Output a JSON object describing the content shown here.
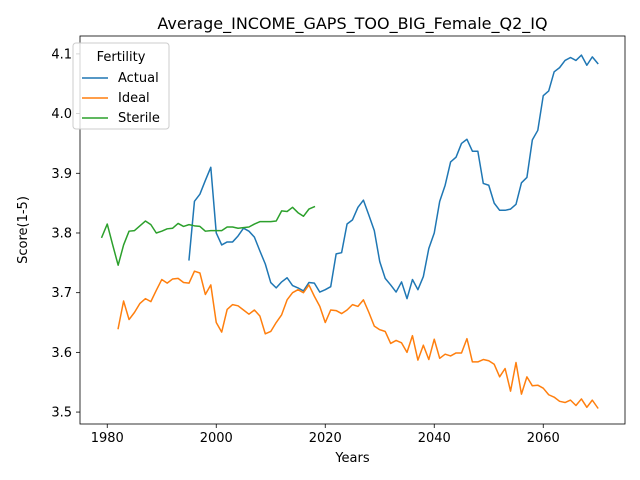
{
  "chart_data": {
    "type": "line",
    "title": "Average_INCOME_GAPS_TOO_BIG_Female_Q2_IQ",
    "xlabel": "Years",
    "ylabel": "Score(1-5)",
    "xlim": [
      1975,
      2075
    ],
    "ylim": [
      3.48,
      4.13
    ],
    "xticks": [
      1980,
      2000,
      2020,
      2040,
      2060
    ],
    "yticks": [
      3.5,
      3.6,
      3.7,
      3.8,
      3.9,
      4.0,
      4.1
    ],
    "grid": false,
    "legend": {
      "title": "Fertility",
      "placement": "upper-left"
    },
    "series": [
      {
        "name": "Actual",
        "color": "#1f77b4",
        "x": [
          1995,
          1996,
          1997,
          1998,
          1999,
          2000,
          2001,
          2002,
          2003,
          2004,
          2005,
          2006,
          2007,
          2008,
          2009,
          2010,
          2011,
          2012,
          2013,
          2014,
          2015,
          2016,
          2017,
          2018,
          2019,
          2020,
          2021,
          2022,
          2023,
          2024,
          2025,
          2026,
          2027,
          2028,
          2029,
          2030,
          2031,
          2032,
          2033,
          2034,
          2035,
          2036,
          2037,
          2038,
          2039,
          2040,
          2041,
          2042,
          2043,
          2044,
          2045,
          2046,
          2047,
          2048,
          2049,
          2050,
          2051,
          2052,
          2053,
          2054,
          2055,
          2056,
          2057,
          2058,
          2059,
          2060,
          2061,
          2062,
          2063,
          2064,
          2065,
          2066,
          2067,
          2068,
          2069,
          2070
        ],
        "values": [
          3.755,
          3.853,
          3.865,
          3.888,
          3.91,
          3.8,
          3.78,
          3.785,
          3.785,
          3.795,
          3.808,
          3.803,
          3.793,
          3.77,
          3.748,
          3.717,
          3.708,
          3.718,
          3.725,
          3.712,
          3.708,
          3.703,
          3.717,
          3.716,
          3.701,
          3.705,
          3.71,
          3.765,
          3.767,
          3.815,
          3.822,
          3.843,
          3.855,
          3.83,
          3.804,
          3.752,
          3.724,
          3.713,
          3.701,
          3.718,
          3.69,
          3.722,
          3.705,
          3.727,
          3.774,
          3.8,
          3.853,
          3.88,
          3.919,
          3.927,
          3.95,
          3.957,
          3.937,
          3.937,
          3.883,
          3.88,
          3.85,
          3.838,
          3.838,
          3.84,
          3.848,
          3.884,
          3.893,
          3.956,
          3.972,
          4.03,
          4.038,
          4.07,
          4.077,
          4.089,
          4.094,
          4.089,
          4.098,
          4.081,
          4.095,
          4.084
        ]
      },
      {
        "name": "Ideal",
        "color": "#ff7f0e",
        "x": [
          1982,
          1983,
          1984,
          1985,
          1986,
          1987,
          1988,
          1989,
          1990,
          1991,
          1992,
          1993,
          1994,
          1995,
          1996,
          1997,
          1998,
          1999,
          2000,
          2001,
          2002,
          2003,
          2004,
          2005,
          2006,
          2007,
          2008,
          2009,
          2010,
          2011,
          2012,
          2013,
          2014,
          2015,
          2016,
          2017,
          2018,
          2019,
          2020,
          2021,
          2022,
          2023,
          2024,
          2025,
          2026,
          2027,
          2028,
          2029,
          2030,
          2031,
          2032,
          2033,
          2034,
          2035,
          2036,
          2037,
          2038,
          2039,
          2040,
          2041,
          2042,
          2043,
          2044,
          2045,
          2046,
          2047,
          2048,
          2049,
          2050,
          2051,
          2052,
          2053,
          2054,
          2055,
          2056,
          2057,
          2058,
          2059,
          2060,
          2061,
          2062,
          2063,
          2064,
          2065,
          2066,
          2067,
          2068,
          2069,
          2070
        ],
        "values": [
          3.64,
          3.686,
          3.655,
          3.667,
          3.682,
          3.69,
          3.685,
          3.704,
          3.722,
          3.716,
          3.723,
          3.724,
          3.717,
          3.716,
          3.736,
          3.733,
          3.697,
          3.713,
          3.65,
          3.634,
          3.672,
          3.68,
          3.678,
          3.671,
          3.664,
          3.671,
          3.661,
          3.631,
          3.635,
          3.65,
          3.663,
          3.688,
          3.7,
          3.705,
          3.7,
          3.713,
          3.694,
          3.677,
          3.65,
          3.671,
          3.67,
          3.665,
          3.671,
          3.68,
          3.677,
          3.688,
          3.667,
          3.644,
          3.638,
          3.635,
          3.615,
          3.62,
          3.616,
          3.6,
          3.628,
          3.587,
          3.612,
          3.588,
          3.622,
          3.59,
          3.597,
          3.594,
          3.599,
          3.599,
          3.623,
          3.584,
          3.584,
          3.588,
          3.586,
          3.58,
          3.559,
          3.573,
          3.535,
          3.583,
          3.53,
          3.559,
          3.544,
          3.545,
          3.54,
          3.529,
          3.525,
          3.518,
          3.516,
          3.52,
          3.511,
          3.522,
          3.508,
          3.52,
          3.507
        ]
      },
      {
        "name": "Sterile",
        "color": "#2ca02c",
        "x": [
          1979,
          1980,
          1981,
          1982,
          1983,
          1984,
          1985,
          1986,
          1987,
          1988,
          1989,
          1990,
          1991,
          1992,
          1993,
          1994,
          1995,
          1996,
          1997,
          1998,
          1999,
          2000,
          2001,
          2002,
          2003,
          2004,
          2005,
          2006,
          2007,
          2008,
          2009,
          2010,
          2011,
          2012,
          2013,
          2014,
          2015,
          2016,
          2017,
          2018
        ],
        "values": [
          3.793,
          3.815,
          3.78,
          3.746,
          3.78,
          3.803,
          3.804,
          3.812,
          3.82,
          3.814,
          3.8,
          3.803,
          3.807,
          3.808,
          3.816,
          3.811,
          3.814,
          3.812,
          3.811,
          3.803,
          3.804,
          3.804,
          3.804,
          3.81,
          3.81,
          3.808,
          3.809,
          3.81,
          3.815,
          3.819,
          3.819,
          3.819,
          3.82,
          3.837,
          3.836,
          3.843,
          3.834,
          3.828,
          3.84,
          3.844
        ]
      }
    ]
  }
}
